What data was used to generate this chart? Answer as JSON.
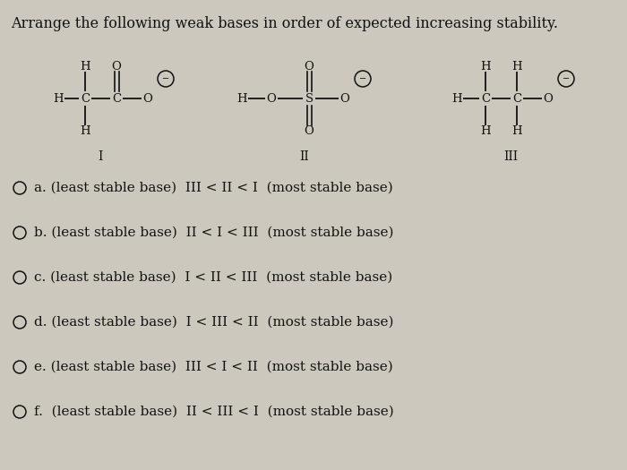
{
  "title": "Arrange the following weak bases in order of expected increasing stability.",
  "background_color": "#ccc8be",
  "text_color": "#111111",
  "title_fontsize": 11.5,
  "option_fontsize": 11.0,
  "options": [
    "a. (least stable base)  III < II < I  (most stable base)",
    "b. (least stable base)  II < I < III  (most stable base)",
    "c. (least stable base)  I < II < III  (most stable base)",
    "d. (least stable base)  I < III < II  (most stable base)",
    "e. (least stable base)  III < I < II  (most stable base)",
    "f.  (least stable base)  II < III < I  (most stable base)"
  ],
  "figsize": [
    7.0,
    5.25
  ],
  "dpi": 100
}
